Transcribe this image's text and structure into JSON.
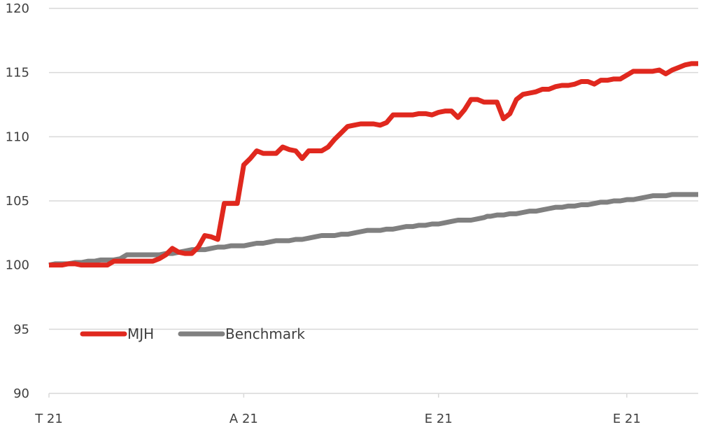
{
  "chart_data": {
    "type": "line",
    "title": "",
    "xlabel": "",
    "ylabel": "",
    "ylim": [
      90,
      120
    ],
    "yticks": [
      90,
      95,
      100,
      105,
      110,
      115,
      120
    ],
    "y_tick_labels": [
      "90",
      "95",
      "100",
      "105",
      "110",
      "115",
      "120"
    ],
    "x_tick_labels": [
      "T 21",
      "A 21",
      "E 21",
      "E 21"
    ],
    "x_tick_positions": [
      0,
      30,
      60,
      89
    ],
    "grid": true,
    "legend": {
      "placement": "lower-left",
      "entries": [
        "MJH",
        "Benchmark"
      ]
    },
    "x": [
      0,
      1,
      2,
      3,
      4,
      5,
      6,
      7,
      8,
      9,
      10,
      11,
      12,
      13,
      14,
      15,
      16,
      17,
      18,
      19,
      20,
      21,
      22,
      23,
      24,
      25,
      26,
      27,
      28,
      29,
      30,
      31,
      32,
      33,
      34,
      35,
      36,
      37,
      38,
      39,
      40,
      41,
      42,
      43,
      44,
      45,
      46,
      47,
      48,
      49,
      50,
      51,
      52,
      53,
      54,
      55,
      56,
      57,
      58,
      59,
      60,
      61,
      62,
      63,
      64,
      65,
      66,
      67,
      67.5,
      68,
      69,
      70,
      71,
      72,
      73,
      74,
      75,
      76,
      77,
      78,
      79,
      80,
      81,
      82,
      83,
      84,
      85,
      86,
      87,
      88,
      89,
      90,
      91,
      92,
      93,
      94,
      95,
      96,
      97,
      98,
      99,
      100
    ],
    "series": [
      {
        "name": "MJH",
        "color": "#e0281e",
        "values": [
          100,
          100,
          100,
          100.1,
          100.1,
          100,
          100,
          100,
          100,
          100,
          100.3,
          100.3,
          100.3,
          100.3,
          100.3,
          100.3,
          100.3,
          100.5,
          100.8,
          101.3,
          101,
          100.9,
          100.9,
          101.4,
          102.3,
          102.2,
          102,
          104.8,
          104.8,
          104.8,
          107.8,
          108.3,
          108.9,
          108.7,
          108.7,
          108.7,
          109.2,
          109,
          108.9,
          108.3,
          108.9,
          108.9,
          108.9,
          109.2,
          109.8,
          110.3,
          110.8,
          110.9,
          111,
          111,
          111,
          110.9,
          111.1,
          111.7,
          111.7,
          111.7,
          111.7,
          111.8,
          111.8,
          111.7,
          111.9,
          112,
          112,
          111.5,
          112.1,
          112.9,
          112.9,
          112.7,
          112.7,
          112.7,
          112.7,
          111.4,
          111.8,
          112.9,
          113.3,
          113.4,
          113.5,
          113.7,
          113.7,
          113.9,
          114,
          114,
          114.1,
          114.3,
          114.3,
          114.1,
          114.4,
          114.4,
          114.5,
          114.5,
          114.8,
          115.1,
          115.1,
          115.1,
          115.1,
          115.2,
          114.9,
          115.2,
          115.4,
          115.6,
          115.7,
          115.7
        ],
        "value_note": ""
      },
      {
        "name": "Benchmark",
        "color": "#808080",
        "values": [
          100,
          100.1,
          100.1,
          100.1,
          100.2,
          100.2,
          100.3,
          100.3,
          100.4,
          100.4,
          100.4,
          100.5,
          100.8,
          100.8,
          100.8,
          100.8,
          100.8,
          100.8,
          100.9,
          100.9,
          101,
          101.1,
          101.2,
          101.2,
          101.2,
          101.3,
          101.4,
          101.4,
          101.5,
          101.5,
          101.5,
          101.6,
          101.7,
          101.7,
          101.8,
          101.9,
          101.9,
          101.9,
          102,
          102,
          102.1,
          102.2,
          102.3,
          102.3,
          102.3,
          102.4,
          102.4,
          102.5,
          102.6,
          102.7,
          102.7,
          102.7,
          102.8,
          102.8,
          102.9,
          103,
          103,
          103.1,
          103.1,
          103.2,
          103.2,
          103.3,
          103.4,
          103.5,
          103.5,
          103.5,
          103.6,
          103.7,
          103.8,
          103.8,
          103.9,
          103.9,
          104,
          104,
          104.1,
          104.2,
          104.2,
          104.3,
          104.4,
          104.5,
          104.5,
          104.6,
          104.6,
          104.7,
          104.7,
          104.8,
          104.9,
          104.9,
          105,
          105,
          105.1,
          105.1,
          105.2,
          105.3,
          105.4,
          105.4,
          105.4,
          105.5,
          105.5,
          105.5,
          105.5,
          105.5
        ]
      }
    ]
  }
}
